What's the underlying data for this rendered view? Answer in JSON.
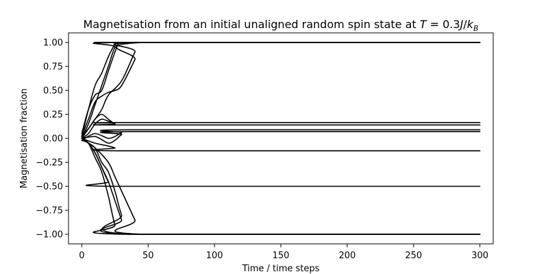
{
  "chart_data": {
    "type": "line",
    "title": {
      "prefix": "Magnetisation from an initial unaligned random spin state at ",
      "math": {
        "T": "T",
        "eq": " = 0.3",
        "J": "J",
        "slash": "/",
        "k": "k",
        "sub": "B"
      }
    },
    "xlabel": "Time / time steps",
    "ylabel": "Magnetisation fraction",
    "xlim": [
      -10,
      310
    ],
    "ylim": [
      -1.1,
      1.1
    ],
    "x_ticks": [
      0,
      50,
      100,
      150,
      200,
      250,
      300
    ],
    "y_ticks": [
      1.0,
      0.75,
      0.5,
      0.25,
      0.0,
      -0.25,
      -0.5,
      -0.75,
      -1.0
    ],
    "x_tick_labels": [
      "0",
      "50",
      "100",
      "150",
      "200",
      "250",
      "300"
    ],
    "y_tick_labels": [
      "1.00",
      "0.75",
      "0.50",
      "0.25",
      "0.00",
      "−0.25",
      "−0.50",
      "−0.75",
      "−1.00"
    ],
    "grid": false,
    "line_color": "#000000",
    "series": [
      {
        "x": [
          0,
          5,
          10,
          15,
          20,
          25,
          28,
          30,
          300
        ],
        "y": [
          0.02,
          0.3,
          0.55,
          0.68,
          0.85,
          0.98,
          1.0,
          1.0,
          1.0
        ]
      },
      {
        "x": [
          0,
          5,
          10,
          15,
          20,
          25,
          30,
          300
        ],
        "y": [
          0.0,
          0.15,
          0.35,
          0.55,
          0.75,
          0.95,
          1.0,
          1.0
        ]
      },
      {
        "x": [
          0,
          5,
          10,
          15,
          20,
          25,
          28,
          30,
          300
        ],
        "y": [
          0.05,
          0.3,
          0.45,
          0.5,
          0.7,
          0.9,
          1.0,
          1.0,
          1.0
        ]
      },
      {
        "x": [
          0,
          5,
          10,
          15,
          20,
          30,
          40,
          44,
          300
        ],
        "y": [
          0.0,
          0.1,
          0.2,
          0.3,
          0.45,
          0.6,
          0.9,
          1.0,
          1.0
        ]
      },
      {
        "x": [
          0,
          5,
          10,
          15,
          20,
          25,
          30,
          40,
          46,
          300
        ],
        "y": [
          0.02,
          0.2,
          0.38,
          0.44,
          0.48,
          0.5,
          0.55,
          0.82,
          1.0,
          1.0
        ]
      },
      {
        "x": [
          0,
          5,
          10,
          15,
          20,
          25,
          30,
          300
        ],
        "y": [
          0.0,
          0.05,
          0.15,
          0.2,
          0.18,
          0.16,
          0.165,
          0.165
        ]
      },
      {
        "x": [
          0,
          5,
          10,
          15,
          20,
          25,
          30,
          300
        ],
        "y": [
          0.02,
          0.1,
          0.2,
          0.25,
          0.2,
          0.15,
          0.14,
          0.14
        ]
      },
      {
        "x": [
          0,
          10,
          20,
          25,
          30,
          35,
          300
        ],
        "y": [
          -0.02,
          0.05,
          0.0,
          0.02,
          0.06,
          0.09,
          0.09
        ]
      },
      {
        "x": [
          0,
          10,
          20,
          25,
          30,
          35,
          300
        ],
        "y": [
          0.0,
          0.02,
          -0.05,
          -0.02,
          0.04,
          0.07,
          0.07
        ]
      },
      {
        "x": [
          0,
          10,
          20,
          25,
          30,
          300
        ],
        "y": [
          0.0,
          -0.05,
          -0.08,
          -0.1,
          -0.13,
          -0.13
        ]
      },
      {
        "x": [
          0,
          5,
          10,
          15,
          20,
          25,
          300
        ],
        "y": [
          -0.02,
          -0.05,
          -0.15,
          -0.3,
          -0.45,
          -0.5,
          -0.5
        ]
      },
      {
        "x": [
          0,
          5,
          10,
          15,
          20,
          25,
          30,
          300
        ],
        "y": [
          0.0,
          -0.05,
          -0.2,
          -0.35,
          -0.6,
          -0.9,
          -1.0,
          -1.0
        ]
      },
      {
        "x": [
          0,
          5,
          10,
          15,
          20,
          25,
          30,
          35,
          300
        ],
        "y": [
          -0.02,
          -0.05,
          -0.15,
          -0.3,
          -0.45,
          -0.65,
          -0.85,
          -1.0,
          -1.0
        ]
      },
      {
        "x": [
          0,
          5,
          10,
          15,
          20,
          25,
          30,
          37,
          300
        ],
        "y": [
          0.0,
          -0.05,
          -0.1,
          -0.25,
          -0.35,
          -0.55,
          -0.8,
          -1.0,
          -1.0
        ]
      },
      {
        "x": [
          0,
          10,
          20,
          25,
          30,
          40,
          45,
          300
        ],
        "y": [
          0.0,
          -0.1,
          -0.25,
          -0.4,
          -0.55,
          -0.85,
          -1.0,
          -1.0
        ]
      }
    ]
  }
}
